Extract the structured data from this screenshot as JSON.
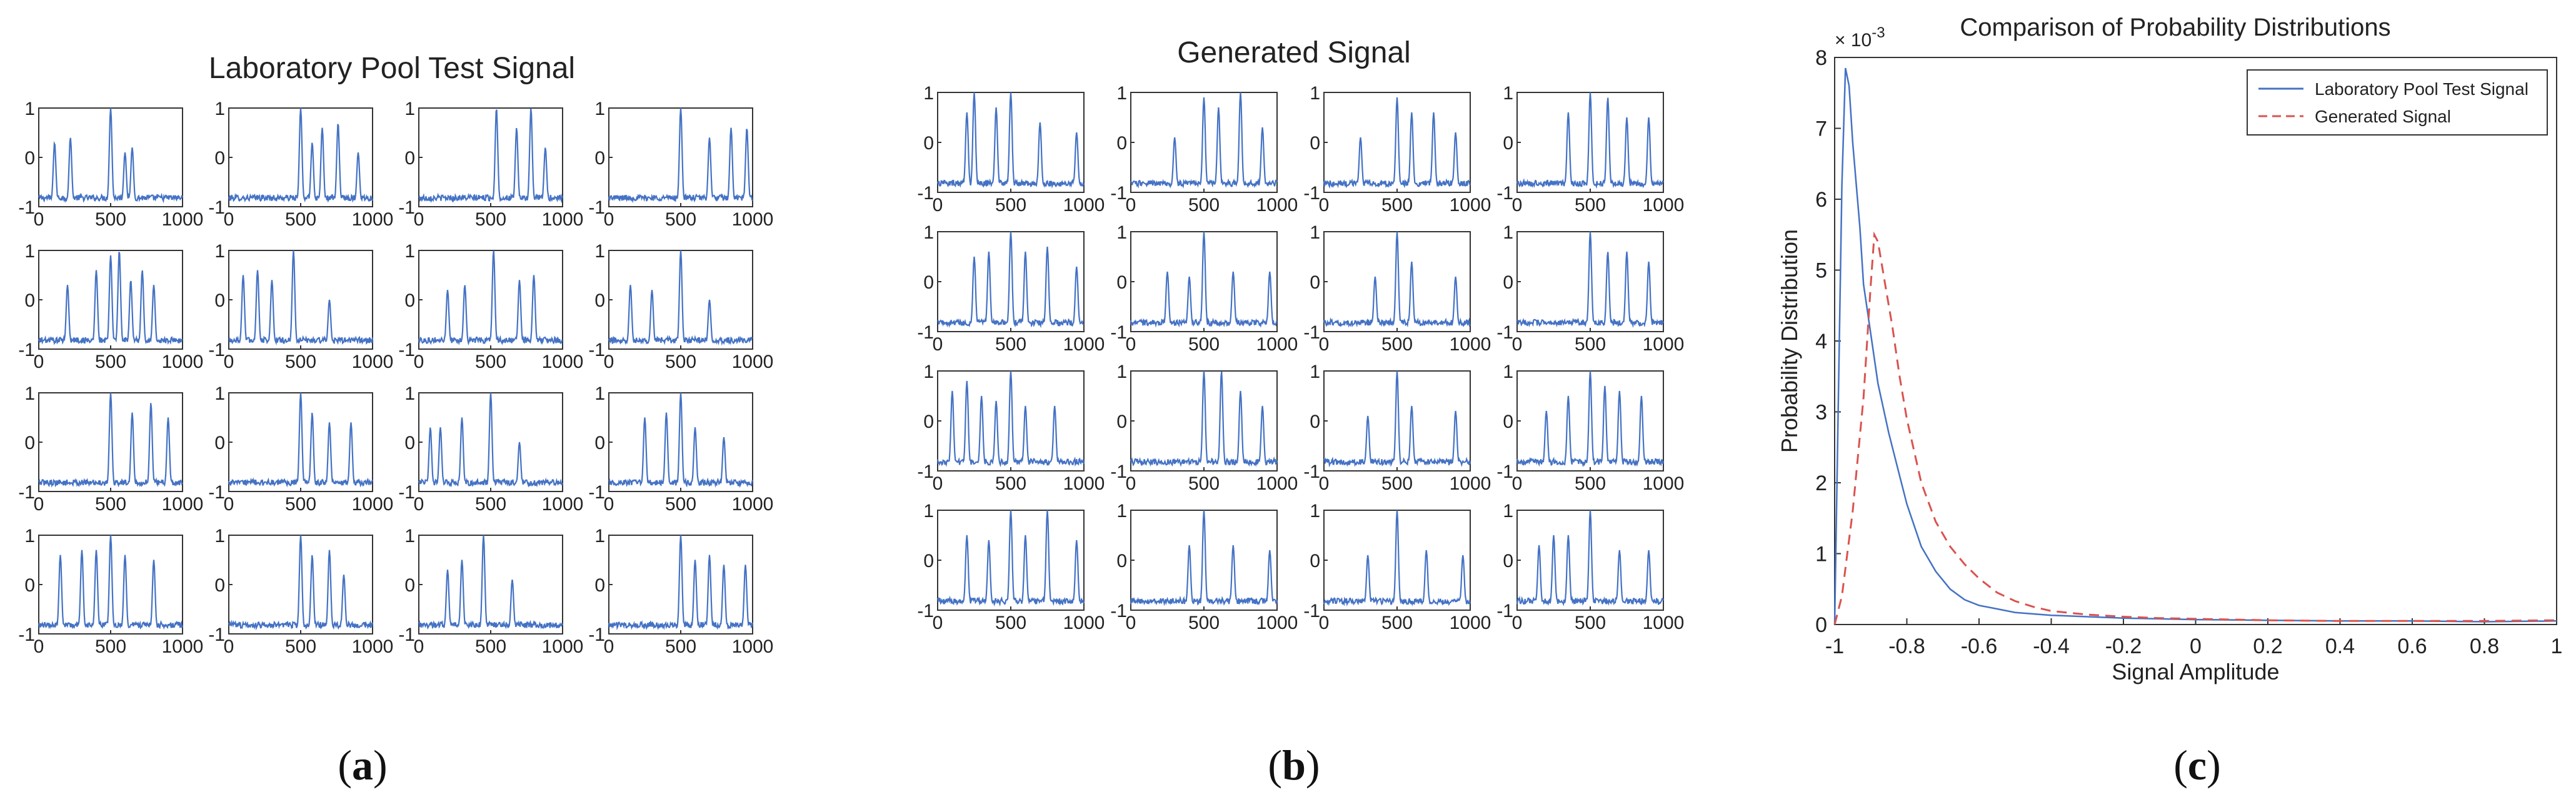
{
  "panels": {
    "a": {
      "title": "Laboratory Pool Test Signal",
      "caption_open": "(",
      "caption_letter": "a",
      "caption_close": ")"
    },
    "b": {
      "title": "Generated Signal",
      "caption_open": "(",
      "caption_letter": "b",
      "caption_close": ")"
    },
    "c": {
      "title": "Comparison of Probability Distributions",
      "caption_open": "(",
      "caption_letter": "c",
      "caption_close": ")"
    }
  },
  "colors": {
    "signal": "#4472c4",
    "generated": "#d9534f",
    "axis": "#333333"
  },
  "chart_data": [
    {
      "panel": "a",
      "type": "line",
      "title": "Laboratory Pool Test Signal",
      "grid_rows": 4,
      "grid_cols": 4,
      "xlim": [
        0,
        1000
      ],
      "ylim": [
        -1,
        1
      ],
      "x_ticks": [
        "0",
        "500",
        "1000"
      ],
      "y_ticks": [
        "1",
        "0",
        "-1"
      ],
      "subplots": [
        {
          "peaks": [
            [
              110,
              0.3
            ],
            [
              220,
              0.4
            ],
            [
              500,
              1.0
            ],
            [
              600,
              0.1
            ],
            [
              650,
              0.2
            ]
          ]
        },
        {
          "peaks": [
            [
              500,
              1.0
            ],
            [
              580,
              0.3
            ],
            [
              650,
              0.6
            ],
            [
              760,
              0.7
            ],
            [
              900,
              0.1
            ]
          ]
        },
        {
          "peaks": [
            [
              540,
              1.0
            ],
            [
              680,
              0.6
            ],
            [
              780,
              1.0
            ],
            [
              880,
              0.2
            ]
          ]
        },
        {
          "peaks": [
            [
              500,
              1.0
            ],
            [
              700,
              0.4
            ],
            [
              850,
              0.6
            ],
            [
              960,
              0.6
            ]
          ]
        },
        {
          "peaks": [
            [
              200,
              0.3
            ],
            [
              400,
              0.6
            ],
            [
              500,
              0.9
            ],
            [
              560,
              1.0
            ],
            [
              640,
              0.4
            ],
            [
              720,
              0.6
            ],
            [
              800,
              0.3
            ]
          ]
        },
        {
          "peaks": [
            [
              100,
              0.5
            ],
            [
              200,
              0.6
            ],
            [
              300,
              0.4
            ],
            [
              450,
              1.0
            ],
            [
              700,
              0.0
            ]
          ]
        },
        {
          "peaks": [
            [
              200,
              0.2
            ],
            [
              320,
              0.3
            ],
            [
              520,
              1.0
            ],
            [
              700,
              0.4
            ],
            [
              800,
              0.5
            ]
          ]
        },
        {
          "peaks": [
            [
              150,
              0.3
            ],
            [
              300,
              0.2
            ],
            [
              500,
              1.0
            ],
            [
              700,
              0.0
            ]
          ]
        },
        {
          "peaks": [
            [
              500,
              1.0
            ],
            [
              650,
              0.6
            ],
            [
              780,
              0.8
            ],
            [
              900,
              0.5
            ]
          ]
        },
        {
          "peaks": [
            [
              500,
              1.0
            ],
            [
              580,
              0.6
            ],
            [
              700,
              0.4
            ],
            [
              850,
              0.4
            ]
          ]
        },
        {
          "peaks": [
            [
              80,
              0.3
            ],
            [
              150,
              0.3
            ],
            [
              300,
              0.5
            ],
            [
              500,
              1.0
            ],
            [
              700,
              0.0
            ]
          ]
        },
        {
          "peaks": [
            [
              250,
              0.5
            ],
            [
              400,
              0.6
            ],
            [
              500,
              1.0
            ],
            [
              600,
              0.3
            ],
            [
              800,
              0.1
            ]
          ]
        },
        {
          "peaks": [
            [
              150,
              0.6
            ],
            [
              300,
              0.7
            ],
            [
              400,
              0.7
            ],
            [
              500,
              1.0
            ],
            [
              600,
              0.6
            ],
            [
              800,
              0.5
            ]
          ]
        },
        {
          "peaks": [
            [
              500,
              1.0
            ],
            [
              580,
              0.6
            ],
            [
              700,
              0.7
            ],
            [
              800,
              0.2
            ]
          ]
        },
        {
          "peaks": [
            [
              200,
              0.3
            ],
            [
              300,
              0.5
            ],
            [
              450,
              1.0
            ],
            [
              650,
              0.1
            ]
          ]
        },
        {
          "peaks": [
            [
              500,
              1.0
            ],
            [
              600,
              0.5
            ],
            [
              700,
              0.6
            ],
            [
              800,
              0.4
            ],
            [
              950,
              0.4
            ]
          ]
        }
      ]
    },
    {
      "panel": "b",
      "type": "line",
      "title": "Generated Signal",
      "grid_rows": 4,
      "grid_cols": 4,
      "xlim": [
        0,
        1000
      ],
      "ylim": [
        -1,
        1
      ],
      "x_ticks": [
        "0",
        "500",
        "1000"
      ],
      "y_ticks": [
        "1",
        "0",
        "-1"
      ],
      "subplots": [
        {
          "peaks": [
            [
              200,
              0.6
            ],
            [
              250,
              1.0
            ],
            [
              400,
              0.7
            ],
            [
              500,
              1.0
            ],
            [
              700,
              0.4
            ],
            [
              950,
              0.2
            ]
          ]
        },
        {
          "peaks": [
            [
              300,
              0.1
            ],
            [
              500,
              0.9
            ],
            [
              600,
              0.7
            ],
            [
              750,
              1.0
            ],
            [
              900,
              0.3
            ]
          ]
        },
        {
          "peaks": [
            [
              250,
              0.1
            ],
            [
              500,
              0.9
            ],
            [
              600,
              0.6
            ],
            [
              750,
              0.6
            ],
            [
              900,
              0.2
            ]
          ]
        },
        {
          "peaks": [
            [
              350,
              0.6
            ],
            [
              500,
              1.0
            ],
            [
              620,
              0.9
            ],
            [
              750,
              0.5
            ],
            [
              900,
              0.5
            ]
          ]
        },
        {
          "peaks": [
            [
              250,
              0.5
            ],
            [
              350,
              0.6
            ],
            [
              500,
              1.0
            ],
            [
              600,
              0.6
            ],
            [
              750,
              0.7
            ],
            [
              950,
              0.3
            ]
          ]
        },
        {
          "peaks": [
            [
              250,
              0.2
            ],
            [
              400,
              0.1
            ],
            [
              500,
              1.0
            ],
            [
              700,
              0.2
            ],
            [
              950,
              0.2
            ]
          ]
        },
        {
          "peaks": [
            [
              350,
              0.1
            ],
            [
              500,
              1.0
            ],
            [
              600,
              0.4
            ],
            [
              900,
              0.1
            ]
          ]
        },
        {
          "peaks": [
            [
              500,
              1.0
            ],
            [
              620,
              0.6
            ],
            [
              750,
              0.6
            ],
            [
              900,
              0.4
            ]
          ]
        },
        {
          "peaks": [
            [
              100,
              0.6
            ],
            [
              200,
              0.8
            ],
            [
              300,
              0.5
            ],
            [
              400,
              0.4
            ],
            [
              500,
              1.0
            ],
            [
              600,
              0.3
            ],
            [
              800,
              0.3
            ]
          ]
        },
        {
          "peaks": [
            [
              500,
              1.0
            ],
            [
              620,
              1.0
            ],
            [
              750,
              0.6
            ],
            [
              900,
              0.3
            ]
          ]
        },
        {
          "peaks": [
            [
              300,
              0.1
            ],
            [
              500,
              1.0
            ],
            [
              600,
              0.3
            ],
            [
              900,
              0.2
            ]
          ]
        },
        {
          "peaks": [
            [
              200,
              0.2
            ],
            [
              350,
              0.5
            ],
            [
              500,
              1.0
            ],
            [
              600,
              0.7
            ],
            [
              700,
              0.6
            ],
            [
              850,
              0.5
            ]
          ]
        },
        {
          "peaks": [
            [
              200,
              0.5
            ],
            [
              350,
              0.4
            ],
            [
              500,
              1.0
            ],
            [
              600,
              0.5
            ],
            [
              750,
              1.0
            ],
            [
              950,
              0.4
            ]
          ]
        },
        {
          "peaks": [
            [
              400,
              0.3
            ],
            [
              500,
              1.0
            ],
            [
              700,
              0.3
            ],
            [
              950,
              0.2
            ]
          ]
        },
        {
          "peaks": [
            [
              300,
              0.1
            ],
            [
              500,
              1.0
            ],
            [
              700,
              0.2
            ],
            [
              950,
              0.1
            ]
          ]
        },
        {
          "peaks": [
            [
              150,
              0.3
            ],
            [
              250,
              0.5
            ],
            [
              350,
              0.5
            ],
            [
              500,
              1.0
            ],
            [
              700,
              0.2
            ],
            [
              900,
              0.2
            ]
          ]
        }
      ]
    },
    {
      "panel": "c",
      "type": "line",
      "title": "Comparison of Probability Distributions",
      "xlabel": "Signal Amplitude",
      "ylabel": "Probability Distribution",
      "y_multiplier": "× 10",
      "y_exponent": "-3",
      "xlim": [
        -1,
        1
      ],
      "ylim": [
        0,
        8
      ],
      "x_ticks": [
        "-1",
        "-0.8",
        "-0.6",
        "-0.4",
        "-0.2",
        "0",
        "0.2",
        "0.4",
        "0.6",
        "0.8",
        "1"
      ],
      "y_ticks": [
        "0",
        "1",
        "2",
        "3",
        "4",
        "5",
        "6",
        "7",
        "8"
      ],
      "legend_position": "top-right",
      "series": [
        {
          "name": "Laboratory Pool Test Signal",
          "style": "solid",
          "x": [
            -1.0,
            -0.98,
            -0.97,
            -0.96,
            -0.95,
            -0.93,
            -0.92,
            -0.9,
            -0.88,
            -0.85,
            -0.82,
            -0.8,
            -0.76,
            -0.72,
            -0.68,
            -0.64,
            -0.6,
            -0.55,
            -0.5,
            -0.45,
            -0.4,
            -0.3,
            -0.2,
            -0.1,
            0.0,
            0.2,
            0.4,
            0.6,
            0.8,
            1.0
          ],
          "y": [
            0.0,
            6.2,
            7.85,
            7.6,
            6.8,
            5.6,
            4.8,
            4.1,
            3.4,
            2.7,
            2.1,
            1.7,
            1.1,
            0.75,
            0.5,
            0.35,
            0.27,
            0.22,
            0.17,
            0.15,
            0.13,
            0.11,
            0.09,
            0.08,
            0.07,
            0.06,
            0.05,
            0.05,
            0.04,
            0.05
          ]
        },
        {
          "name": "Generated Signal",
          "style": "dashed",
          "x": [
            -1.0,
            -0.98,
            -0.95,
            -0.92,
            -0.9,
            -0.89,
            -0.88,
            -0.86,
            -0.84,
            -0.82,
            -0.8,
            -0.76,
            -0.72,
            -0.68,
            -0.64,
            -0.6,
            -0.55,
            -0.5,
            -0.45,
            -0.4,
            -0.3,
            -0.2,
            -0.1,
            0.0,
            0.2,
            0.4,
            0.6,
            0.8,
            1.0
          ],
          "y": [
            0.0,
            0.4,
            1.6,
            3.2,
            4.8,
            5.5,
            5.4,
            4.8,
            4.2,
            3.5,
            2.9,
            2.0,
            1.45,
            1.1,
            0.85,
            0.65,
            0.45,
            0.33,
            0.25,
            0.19,
            0.14,
            0.11,
            0.09,
            0.08,
            0.06,
            0.05,
            0.05,
            0.05,
            0.06
          ]
        }
      ]
    }
  ]
}
